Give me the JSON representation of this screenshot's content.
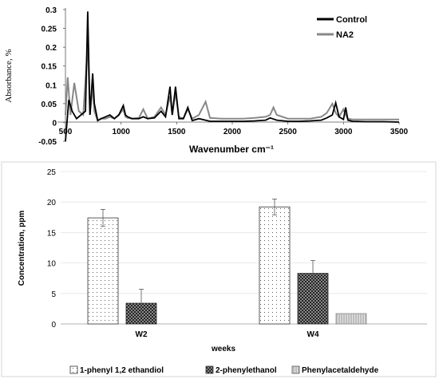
{
  "chart_data": [
    {
      "type": "line",
      "xlabel": "Wavenumber cm⁻¹",
      "ylabel": "Absorbance, %",
      "xlim": [
        500,
        3500
      ],
      "ylim": [
        -0.05,
        0.3
      ],
      "x_ticks": [
        "500",
        "1000",
        "1500",
        "2000",
        "2500",
        "3000",
        "3500"
      ],
      "y_ticks": [
        "-0.05",
        "0",
        "0.05",
        "0.1",
        "0.15",
        "0.2",
        "0.25",
        "0.3"
      ],
      "legend_position": "top-right",
      "series": [
        {
          "name": "Control",
          "color": "#000000",
          "x": [
            500,
            530,
            560,
            600,
            640,
            680,
            700,
            720,
            745,
            760,
            790,
            820,
            860,
            900,
            940,
            980,
            1020,
            1040,
            1060,
            1100,
            1160,
            1200,
            1240,
            1300,
            1360,
            1400,
            1440,
            1460,
            1490,
            1520,
            1560,
            1600,
            1640,
            1700,
            1800,
            1900,
            2000,
            2100,
            2200,
            2300,
            2340,
            2360,
            2400,
            2500,
            2600,
            2700,
            2800,
            2850,
            2900,
            2930,
            2960,
            3000,
            3020,
            3040,
            3080,
            3200,
            3350,
            3500
          ],
          "y": [
            -0.05,
            0.06,
            0.03,
            0.01,
            0.02,
            0.03,
            0.295,
            0.02,
            0.13,
            0.05,
            0.005,
            0.01,
            0.015,
            0.02,
            0.01,
            0.02,
            0.045,
            0.02,
            0.015,
            0.01,
            0.01,
            0.015,
            0.01,
            0.012,
            0.03,
            0.015,
            0.095,
            0.02,
            0.095,
            0.01,
            0.01,
            0.04,
            0.005,
            0.01,
            0.003,
            0.003,
            0.003,
            0.003,
            0.004,
            0.006,
            0.012,
            0.01,
            0.006,
            0.003,
            0.003,
            0.004,
            0.006,
            0.012,
            0.02,
            0.052,
            0.015,
            0.008,
            0.04,
            0.006,
            0.003,
            0.002,
            0.002,
            0.001
          ]
        },
        {
          "name": "NA2",
          "color": "#888888",
          "x": [
            500,
            520,
            545,
            580,
            620,
            660,
            700,
            720,
            745,
            760,
            790,
            820,
            860,
            900,
            940,
            980,
            1020,
            1040,
            1060,
            1100,
            1160,
            1200,
            1240,
            1300,
            1360,
            1400,
            1440,
            1460,
            1490,
            1520,
            1560,
            1600,
            1640,
            1700,
            1760,
            1800,
            1900,
            2000,
            2100,
            2200,
            2300,
            2340,
            2370,
            2400,
            2500,
            2600,
            2700,
            2800,
            2850,
            2900,
            2930,
            2960,
            3000,
            3020,
            3040,
            3080,
            3200,
            3350,
            3500
          ],
          "y": [
            0.02,
            0.12,
            0.02,
            0.105,
            0.03,
            0.02,
            0.21,
            0.02,
            0.095,
            0.03,
            0.005,
            0.01,
            0.01,
            0.015,
            0.01,
            0.02,
            0.035,
            0.015,
            0.012,
            0.01,
            0.012,
            0.035,
            0.01,
            0.015,
            0.04,
            0.02,
            0.07,
            0.02,
            0.08,
            0.015,
            0.01,
            0.035,
            0.01,
            0.02,
            0.055,
            0.012,
            0.01,
            0.01,
            0.01,
            0.012,
            0.015,
            0.02,
            0.04,
            0.02,
            0.01,
            0.01,
            0.01,
            0.015,
            0.025,
            0.05,
            0.025,
            0.015,
            0.035,
            0.02,
            0.01,
            0.008,
            0.008,
            0.008,
            0.008
          ]
        }
      ]
    },
    {
      "type": "bar",
      "xlabel": "weeks",
      "ylabel": "Concentration, ppm",
      "categories": [
        "W2",
        "W4"
      ],
      "ylim": [
        0,
        25
      ],
      "y_ticks": [
        "0",
        "5",
        "10",
        "15",
        "20",
        "25"
      ],
      "legend_position": "bottom",
      "series": [
        {
          "name": "1-phenyl 1,2 ethandiol",
          "values": [
            17.4,
            19.2
          ],
          "errors": [
            1.4,
            1.3
          ],
          "fill": "dotted"
        },
        {
          "name": "2-phenylethanol",
          "values": [
            3.4,
            8.3
          ],
          "errors": [
            2.3,
            2.1
          ],
          "fill": "dark-checked"
        },
        {
          "name": "Phenylacetaldehyde",
          "values": [
            null,
            1.7
          ],
          "errors": [
            null,
            null
          ],
          "fill": "light-hatched"
        }
      ]
    }
  ]
}
